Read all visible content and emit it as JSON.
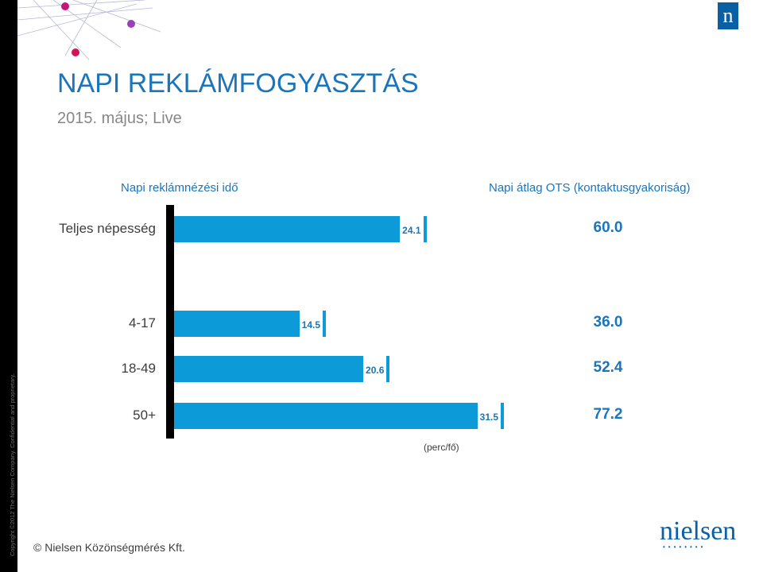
{
  "page": {
    "title": "NAPI REKLÁMFOGYASZTÁS",
    "subtitle": "2015. május; Live",
    "side_note": "Copyright ©2012 The Nielsen Company. Confidential and proprietary.",
    "footer": "© Nielsen Közönségmérés Kft.",
    "brand_logo": "nielsen",
    "corner_logo": "n",
    "colors": {
      "accent": "#1b75bb",
      "bar": "#0d9ad9",
      "brand": "#0b5fa5"
    }
  },
  "chart_data": {
    "type": "bar",
    "orientation": "horizontal",
    "left_header": "Napi reklámnézési idő",
    "right_header": "Napi átlag OTS (kontaktusgyakoriság)",
    "unit_label": "(perc/fő)",
    "categories": [
      "Teljes népesség",
      "4-17",
      "18-49",
      "50+"
    ],
    "series": [
      {
        "name": "Napi reklámnézési idő",
        "values": [
          24.1,
          14.5,
          20.6,
          31.5
        ],
        "labels": [
          "24.1",
          "14.5",
          "20.6",
          "31.5"
        ]
      },
      {
        "name": "Napi átlag OTS (kontaktusgyakoriság)",
        "values": [
          60.0,
          36.0,
          52.4,
          77.2
        ],
        "labels": [
          "60.0",
          "36.0",
          "52.4",
          "77.2"
        ]
      }
    ],
    "xlim": [
      0,
      32
    ],
    "grid": false,
    "legend": "none"
  }
}
